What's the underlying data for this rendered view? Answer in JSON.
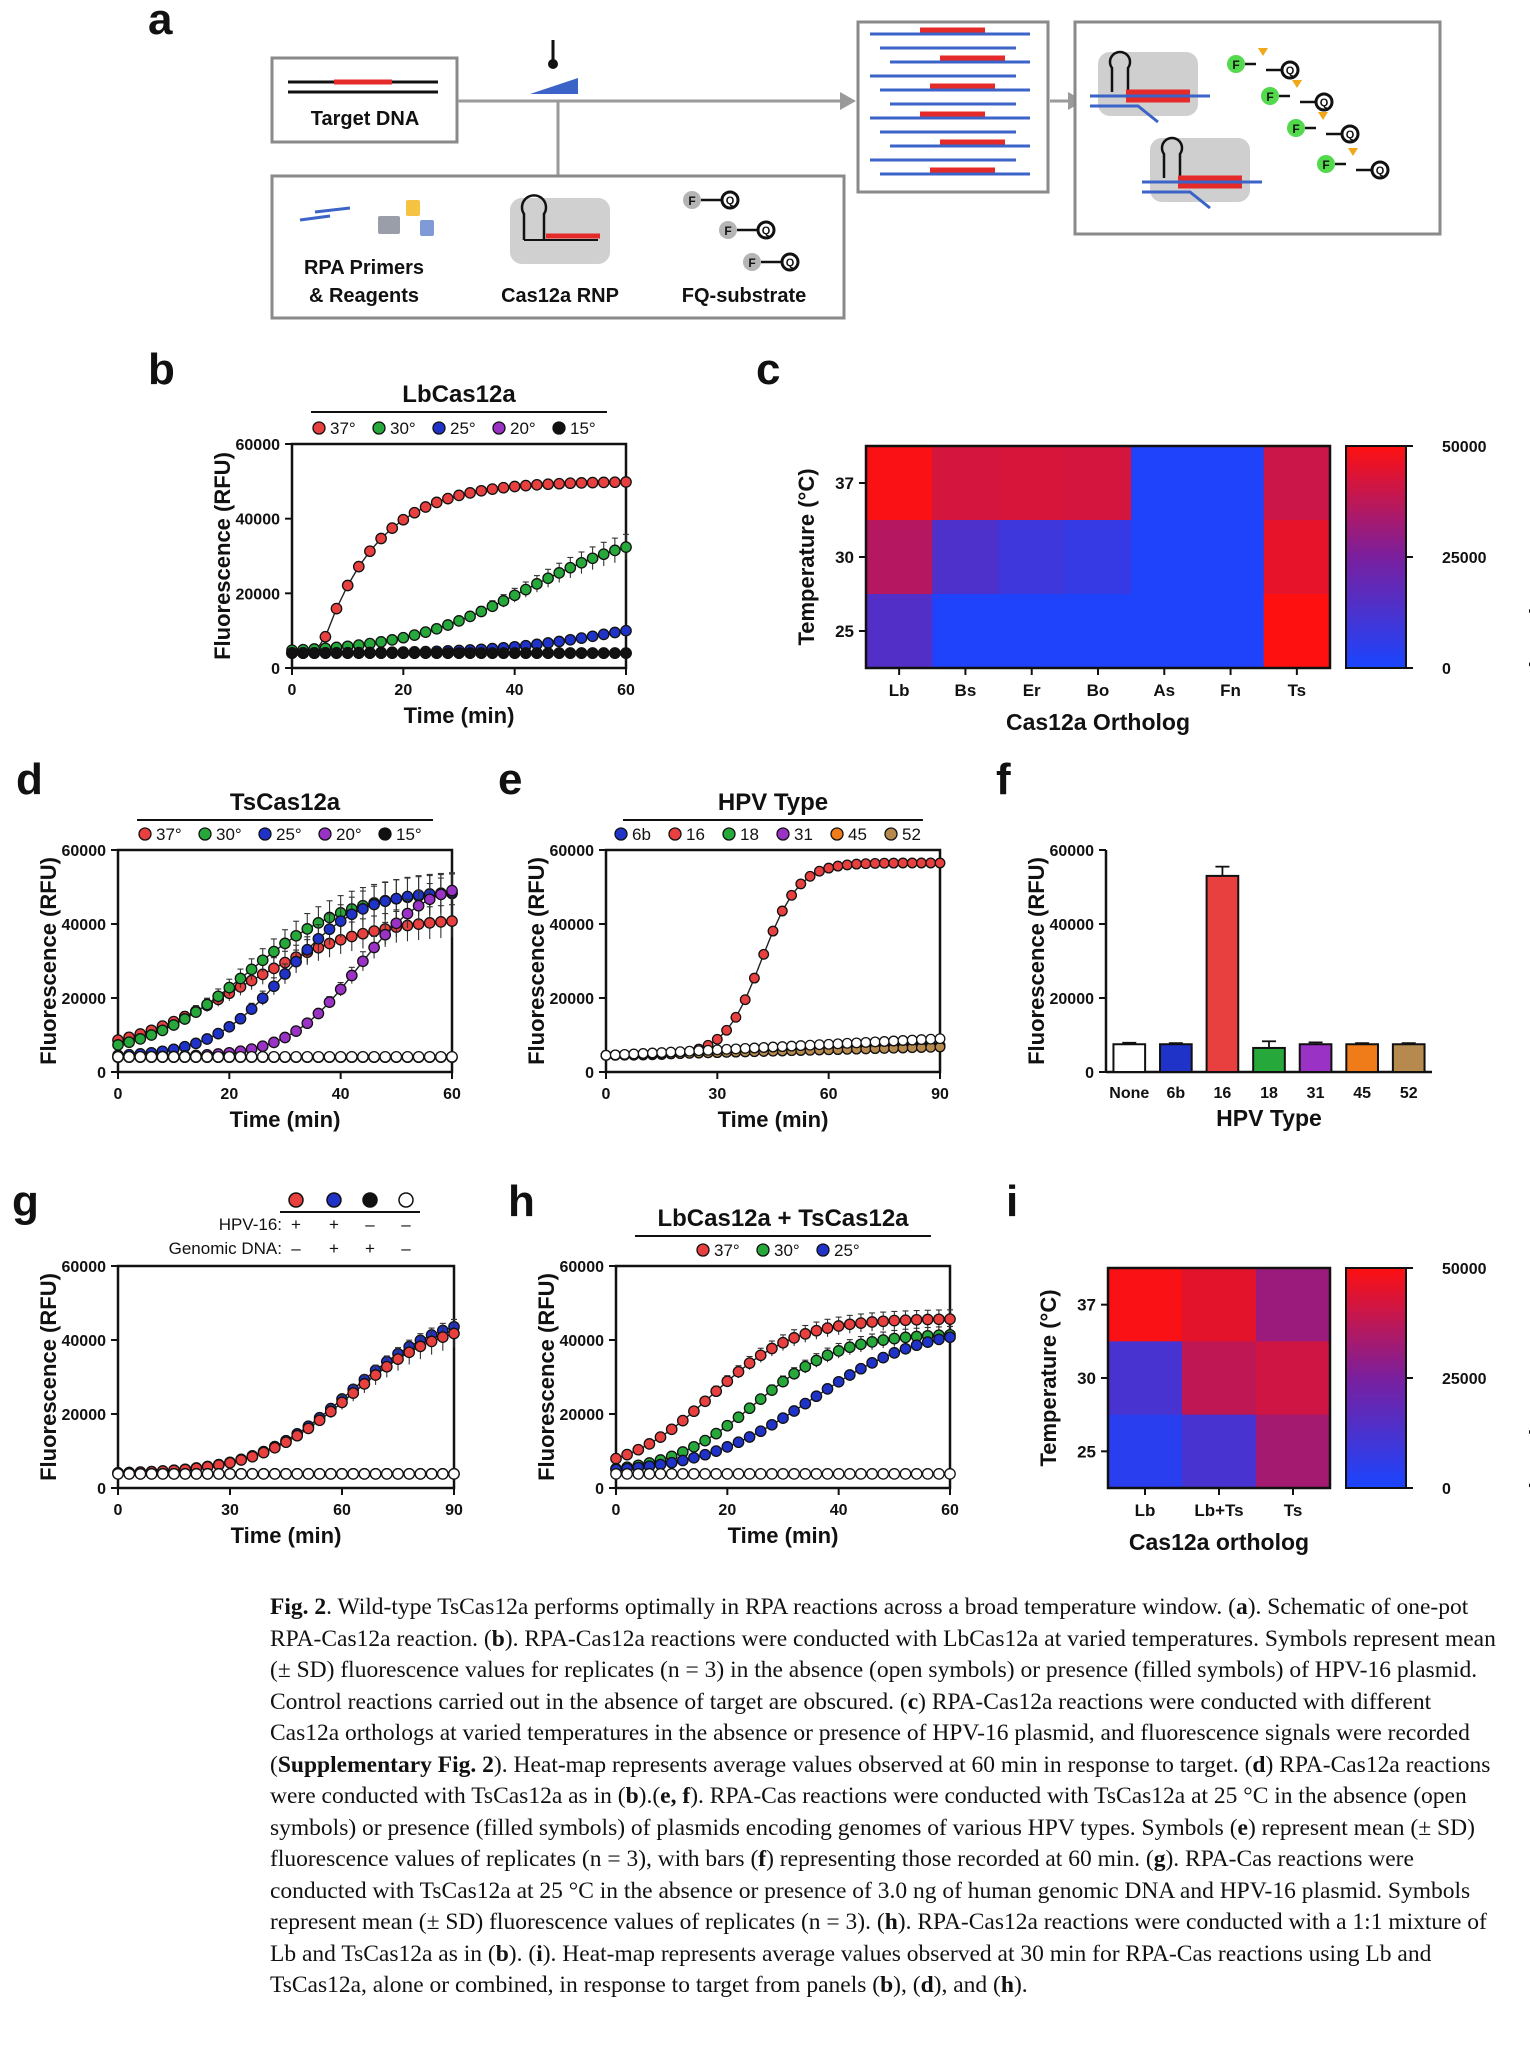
{
  "colors": {
    "c37": "#e8403f",
    "c30": "#27a83a",
    "c25": "#1f33c8",
    "c20": "#9a32c6",
    "c15": "#111111",
    "orange": "#f07c19",
    "tan": "#b68a4e",
    "open": "#ffffff",
    "grid": "#444444",
    "heatLow": "#1a45ff",
    "heatMid": "#7a1f9e",
    "heatHigh": "#ff1010"
  },
  "panel_letters": {
    "a": "a",
    "b": "b",
    "c": "c",
    "d": "d",
    "e": "e",
    "f": "f",
    "g": "g",
    "h": "h",
    "i": "i"
  },
  "schematic": {
    "target_dna": "Target DNA",
    "rpa_l1": "RPA Primers",
    "rpa_l2": "& Reagents",
    "cas_rnp": "Cas12a RNP",
    "fq_substrate": "FQ-substrate",
    "f": "F",
    "q": "Q"
  },
  "common": {
    "ylabel": "Fluorescence (RFU)",
    "xlabel": "Time (min)"
  },
  "legend_temps": [
    "37°",
    "30°",
    "25°",
    "20°",
    "15°"
  ],
  "panel_g_legend": {
    "row1_label": "HPV-16:",
    "row2_label": "Genomic DNA:",
    "row1": [
      "+",
      "+",
      "–",
      "–"
    ],
    "row2": [
      "–",
      "+",
      "+",
      "–"
    ]
  },
  "caption": {
    "fig": "Fig. 2",
    "text_1": ".  Wild-type TsCas12a performs optimally in RPA reactions across a broad temperature window. (",
    "a": "a",
    "text_2": "). Schematic of one-pot RPA-Cas12a reaction. (",
    "b": "b",
    "text_3": "). RPA-Cas12a reactions were conducted with LbCas12a at varied temperatures. Symbols represent mean (± SD) fluorescence values for replicates (n = 3) in the absence (open symbols) or presence (filled symbols) of HPV-16 plasmid. Control reactions carried out in the absence of target are obscured. (",
    "c": "c",
    "text_4": ") RPA-Cas12a reactions were conducted with different Cas12a orthologs at varied temperatures in the absence or presence of HPV-16 plasmid, and fluorescence signals were recorded (",
    "supp": "Supplementary Fig. 2",
    "text_5": "). Heat-map represents average values observed at 60 min in response to target. (",
    "d": "d",
    "text_6": ") RPA-Cas12a reactions were conducted with TsCas12a as in (",
    "b2": "b",
    "text_7": ").(",
    "ef": "e, f",
    "text_8": "). RPA-Cas reactions were conducted with TsCas12a at 25 °C in the absence (open symbols) or presence (filled symbols) of plasmids encoding genomes of various HPV types. Symbols (",
    "e": "e",
    "text_9": ") represent mean (± SD) fluorescence values of replicates (n = 3), with bars (",
    "f": "f",
    "text_10": ") representing those recorded at 60 min. (",
    "g": "g",
    "text_11": "). RPA-Cas reactions were conducted with TsCas12a at 25 °C in the absence or presence of 3.0 ng of human genomic DNA and HPV-16 plasmid. Symbols represent mean (± SD) fluorescence values of replicates (n = 3). (",
    "h": "h",
    "text_12": "). RPA-Cas12a reactions were conducted with a 1:1 mixture of Lb and TsCas12a as in (",
    "b3": "b",
    "text_13": "). (",
    "i": "i",
    "text_14": "). Heat-map represents average values observed at 30 min for RPA-Cas reactions using Lb and TsCas12a, alone or combined, in response to target from panels (",
    "b4": "b",
    "text_15": "), (",
    "d2": "d",
    "text_16": "), and (",
    "h2": "h",
    "text_17": ")."
  },
  "chart_data": [
    {
      "panel": "b",
      "type": "line",
      "title": "LbCas12a",
      "xlabel": "Time (min)",
      "ylabel": "Fluorescence (RFU)",
      "xlim": [
        0,
        60
      ],
      "ylim": [
        0,
        60000
      ],
      "xticks": [
        0,
        20,
        40,
        60
      ],
      "yticks": [
        0,
        20000,
        40000,
        60000
      ],
      "legend_position": "top",
      "series": [
        {
          "name": "37°",
          "color_key": "c37",
          "model": {
            "kind": "exp",
            "y0": 4000,
            "A": 46000,
            "lag": 5,
            "k": 0.1
          }
        },
        {
          "name": "30°",
          "color_key": "c30",
          "model": {
            "kind": "logistic",
            "y0": 4000,
            "A": 34000,
            "x0": 42,
            "k": 0.09
          },
          "err": 0.12
        },
        {
          "name": "25°",
          "color_key": "c25",
          "model": {
            "kind": "logistic",
            "y0": 4000,
            "A": 10000,
            "x0": 56,
            "k": 0.1
          }
        },
        {
          "name": "20°",
          "color_key": "c20",
          "model": {
            "kind": "flat",
            "y0": 4000
          }
        },
        {
          "name": "15°",
          "color_key": "c15",
          "model": {
            "kind": "flat",
            "y0": 4000
          }
        }
      ]
    },
    {
      "panel": "c",
      "type": "heatmap",
      "xlabel": "Cas12a Ortholog",
      "ylabel": "Temperature (°C)",
      "x": [
        "Lb",
        "Bs",
        "Er",
        "Bo",
        "As",
        "Fn",
        "Ts"
      ],
      "y": [
        "37",
        "30",
        "25"
      ],
      "values": [
        [
          49000,
          42000,
          42500,
          42000,
          1000,
          1000,
          40000
        ],
        [
          36000,
          13500,
          9000,
          7000,
          1000,
          1000,
          45500
        ],
        [
          14500,
          1000,
          1000,
          1000,
          1000,
          1000,
          50000
        ]
      ],
      "colorbar": {
        "label": "Fluorescence (RFU)",
        "min": 0,
        "max": 50000,
        "ticks": [
          0,
          25000,
          50000
        ]
      }
    },
    {
      "panel": "d",
      "type": "line",
      "title": "TsCas12a",
      "xlabel": "Time (min)",
      "ylabel": "Fluorescence (RFU)",
      "xlim": [
        0,
        60
      ],
      "ylim": [
        0,
        60000
      ],
      "xticks": [
        0,
        20,
        40,
        60
      ],
      "yticks": [
        0,
        20000,
        40000,
        60000
      ],
      "legend_position": "top",
      "series": [
        {
          "name": "37°",
          "color_key": "c37",
          "model": {
            "kind": "logistic",
            "y0": 4000,
            "A": 38000,
            "x0": 22,
            "k": 0.09
          },
          "err": 0.12
        },
        {
          "name": "30°",
          "color_key": "c30",
          "model": {
            "kind": "logistic",
            "y0": 4000,
            "A": 45000,
            "x0": 23,
            "k": 0.11
          },
          "err": 0.12
        },
        {
          "name": "25°",
          "color_key": "c25",
          "model": {
            "kind": "logistic",
            "y0": 4000,
            "A": 45000,
            "x0": 30,
            "k": 0.15
          },
          "err": 0.12
        },
        {
          "name": "20°",
          "color_key": "c20",
          "model": {
            "kind": "logistic",
            "y0": 4000,
            "A": 48000,
            "x0": 43,
            "k": 0.16
          },
          "err": 0.1
        },
        {
          "name": "15°",
          "color_key": "c15",
          "model": {
            "kind": "flat",
            "y0": 4000
          }
        },
        {
          "name": "",
          "color_key": "open",
          "open": true,
          "model": {
            "kind": "flat",
            "y0": 4100
          }
        }
      ]
    },
    {
      "panel": "e",
      "type": "line",
      "title": "HPV Type",
      "xlabel": "Time (min)",
      "ylabel": "Fluorescence (RFU)",
      "xlim": [
        0,
        90
      ],
      "ylim": [
        0,
        60000
      ],
      "xticks": [
        0,
        30,
        60,
        90
      ],
      "yticks": [
        0,
        20000,
        40000,
        60000
      ],
      "legend_position": "top",
      "legend": [
        {
          "name": "6b",
          "color_key": "c25"
        },
        {
          "name": "16",
          "color_key": "c37"
        },
        {
          "name": "18",
          "color_key": "c30"
        },
        {
          "name": "31",
          "color_key": "c20"
        },
        {
          "name": "45",
          "color_key": "orange"
        },
        {
          "name": "52",
          "color_key": "tan"
        }
      ],
      "series": [
        {
          "name": "16",
          "color_key": "c37",
          "model": {
            "kind": "logistic",
            "y0": 4500,
            "A": 52000,
            "x0": 42,
            "k": 0.2
          }
        },
        {
          "name": "6b",
          "color_key": "c25",
          "model": {
            "kind": "linear",
            "y0": 4500,
            "slope": 28
          }
        },
        {
          "name": "18",
          "color_key": "c30",
          "model": {
            "kind": "linear",
            "y0": 4500,
            "slope": 30
          }
        },
        {
          "name": "31",
          "color_key": "c20",
          "model": {
            "kind": "linear",
            "y0": 4500,
            "slope": 26
          }
        },
        {
          "name": "45",
          "color_key": "orange",
          "model": {
            "kind": "linear",
            "y0": 4500,
            "slope": 27
          }
        },
        {
          "name": "52",
          "color_key": "tan",
          "model": {
            "kind": "linear",
            "y0": 4500,
            "slope": 25
          }
        },
        {
          "name": "",
          "color_key": "open",
          "open": true,
          "model": {
            "kind": "linear",
            "y0": 4500,
            "slope": 50
          }
        }
      ]
    },
    {
      "panel": "f",
      "type": "bar",
      "xlabel": "HPV Type",
      "ylabel": "Fluorescence (RFU)",
      "ylim": [
        0,
        60000
      ],
      "yticks": [
        0,
        20000,
        40000,
        60000
      ],
      "categories": [
        "None",
        "6b",
        "16",
        "18",
        "31",
        "45",
        "52"
      ],
      "values": [
        7500,
        7500,
        53000,
        6500,
        7500,
        7500,
        7500
      ],
      "errors": [
        400,
        300,
        2500,
        1800,
        500,
        300,
        300
      ],
      "color_keys": [
        "open",
        "c25",
        "c37",
        "c30",
        "c20",
        "orange",
        "tan"
      ]
    },
    {
      "panel": "g",
      "type": "line",
      "xlabel": "Time (min)",
      "ylabel": "Fluorescence (RFU)",
      "xlim": [
        0,
        90
      ],
      "ylim": [
        0,
        60000
      ],
      "xticks": [
        0,
        30,
        60,
        90
      ],
      "yticks": [
        0,
        20000,
        40000,
        60000
      ],
      "series": [
        {
          "name": "",
          "color_key": "c25",
          "model": {
            "kind": "logistic",
            "y0": 3800,
            "A": 44000,
            "x0": 62,
            "k": 0.08
          }
        },
        {
          "name": "",
          "color_key": "c37",
          "model": {
            "kind": "logistic",
            "y0": 3800,
            "A": 42000,
            "x0": 62,
            "k": 0.08
          },
          "err": 0.1
        },
        {
          "name": "",
          "color_key": "c15",
          "model": {
            "kind": "flat",
            "y0": 3800
          }
        },
        {
          "name": "",
          "color_key": "open",
          "open": true,
          "model": {
            "kind": "flat",
            "y0": 3800
          }
        }
      ],
      "legend_symbols": [
        "c37",
        "c25",
        "c15",
        "open"
      ]
    },
    {
      "panel": "h",
      "type": "line",
      "title": "LbCas12a + TsCas12a",
      "xlabel": "Time (min)",
      "ylabel": "Fluorescence (RFU)",
      "xlim": [
        0,
        60
      ],
      "ylim": [
        0,
        60000
      ],
      "xticks": [
        0,
        20,
        40,
        60
      ],
      "yticks": [
        0,
        20000,
        40000,
        60000
      ],
      "legend_position": "top",
      "series": [
        {
          "name": "37°",
          "color_key": "c37",
          "model": {
            "kind": "logistic",
            "y0": 3800,
            "A": 42000,
            "x0": 17,
            "k": 0.13
          },
          "err": 0.06
        },
        {
          "name": "30°",
          "color_key": "c30",
          "model": {
            "kind": "logistic",
            "y0": 3800,
            "A": 38000,
            "x0": 25,
            "k": 0.13
          },
          "err": 0.06
        },
        {
          "name": "25°",
          "color_key": "c25",
          "model": {
            "kind": "logistic",
            "y0": 3800,
            "A": 40000,
            "x0": 35,
            "k": 0.1
          }
        },
        {
          "name": "",
          "color_key": "open",
          "open": true,
          "model": {
            "kind": "flat",
            "y0": 3800
          }
        }
      ]
    },
    {
      "panel": "i",
      "type": "heatmap",
      "xlabel": "Cas12a ortholog",
      "ylabel": "Temperature (°C)",
      "x": [
        "Lb",
        "Lb+Ts",
        "Ts"
      ],
      "y": [
        "37",
        "30",
        "25"
      ],
      "values": [
        [
          49000,
          45000,
          31000
        ],
        [
          12000,
          38000,
          41000
        ],
        [
          4000,
          12000,
          33000
        ]
      ],
      "colorbar": {
        "label": "Fluorescence (RFU)",
        "min": 0,
        "max": 50000,
        "ticks": [
          0,
          25000,
          50000
        ]
      }
    }
  ]
}
